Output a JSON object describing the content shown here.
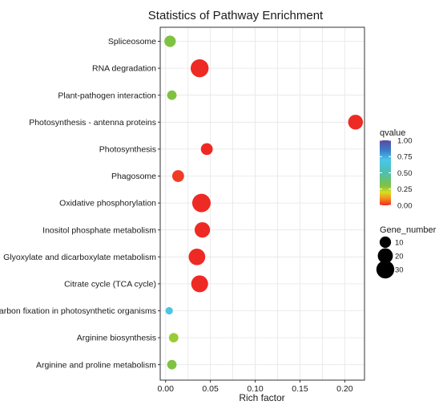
{
  "chart_data": {
    "type": "scatter",
    "title": "Statistics of Pathway Enrichment",
    "xlabel": "Rich factor",
    "ylabel": "",
    "xlim": [
      -0.006,
      0.222
    ],
    "x_ticks": [
      0.0,
      0.05,
      0.1,
      0.15,
      0.2
    ],
    "x_tick_labels": [
      "0.00",
      "0.05",
      "0.10",
      "0.15",
      "0.20"
    ],
    "grid": true,
    "categories": [
      "Spliceosome",
      "RNA degradation",
      "Plant-pathogen interaction",
      "Photosynthesis - antenna proteins",
      "Photosynthesis",
      "Phagosome",
      "Oxidative phosphorylation",
      "Inositol phosphate metabolism",
      "Glyoxylate and dicarboxylate metabolism",
      "Citrate cycle (TCA cycle)",
      "Carbon fixation in photosynthetic organisms",
      "Arginine biosynthesis",
      "Arginine and proline metabolism"
    ],
    "points": [
      {
        "pathway": "Spliceosome",
        "rich_factor": 0.005,
        "qvalue": 0.3,
        "gene_number": 10
      },
      {
        "pathway": "RNA degradation",
        "rich_factor": 0.038,
        "qvalue": 0.0,
        "gene_number": 30
      },
      {
        "pathway": "Plant-pathogen interaction",
        "rich_factor": 0.007,
        "qvalue": 0.3,
        "gene_number": 6
      },
      {
        "pathway": "Photosynthesis - antenna proteins",
        "rich_factor": 0.212,
        "qvalue": 0.0,
        "gene_number": 19
      },
      {
        "pathway": "Photosynthesis",
        "rich_factor": 0.046,
        "qvalue": 0.0,
        "gene_number": 11
      },
      {
        "pathway": "Phagosome",
        "rich_factor": 0.014,
        "qvalue": 0.02,
        "gene_number": 11
      },
      {
        "pathway": "Oxidative phosphorylation",
        "rich_factor": 0.04,
        "qvalue": 0.0,
        "gene_number": 32
      },
      {
        "pathway": "Inositol phosphate metabolism",
        "rich_factor": 0.041,
        "qvalue": 0.0,
        "gene_number": 21
      },
      {
        "pathway": "Glyoxylate and dicarboxylate metabolism",
        "rich_factor": 0.035,
        "qvalue": 0.0,
        "gene_number": 25
      },
      {
        "pathway": "Citrate cycle (TCA cycle)",
        "rich_factor": 0.038,
        "qvalue": 0.0,
        "gene_number": 26
      },
      {
        "pathway": "Carbon fixation in photosynthetic organisms",
        "rich_factor": 0.004,
        "qvalue": 0.68,
        "gene_number": 3
      },
      {
        "pathway": "Arginine biosynthesis",
        "rich_factor": 0.009,
        "qvalue": 0.27,
        "gene_number": 6
      },
      {
        "pathway": "Arginine and proline metabolism",
        "rich_factor": 0.007,
        "qvalue": 0.3,
        "gene_number": 6
      }
    ],
    "color_legend": {
      "title": "qvalue",
      "ticks": [
        1.0,
        0.75,
        0.5,
        0.25,
        0.0
      ],
      "tick_labels": [
        "1.00",
        "0.75",
        "0.50",
        "0.25",
        "0.00"
      ],
      "stops": [
        {
          "value": 0.0,
          "color": "#ee2a24"
        },
        {
          "value": 0.1,
          "color": "#f58b1f"
        },
        {
          "value": 0.2,
          "color": "#d8df21"
        },
        {
          "value": 0.3,
          "color": "#7fc241"
        },
        {
          "value": 0.5,
          "color": "#4fbfae"
        },
        {
          "value": 0.7,
          "color": "#49c6ea"
        },
        {
          "value": 0.85,
          "color": "#3a7bc8"
        },
        {
          "value": 1.0,
          "color": "#5b4a9f"
        }
      ]
    },
    "size_legend": {
      "title": "Gene_number",
      "values": [
        10,
        20,
        30
      ],
      "labels": [
        "10",
        "20",
        "30"
      ]
    },
    "colors": {
      "panel_background": "#ffffff",
      "panel_border": "#333333",
      "grid": "#e6e6e6",
      "tick": "#333333"
    }
  }
}
